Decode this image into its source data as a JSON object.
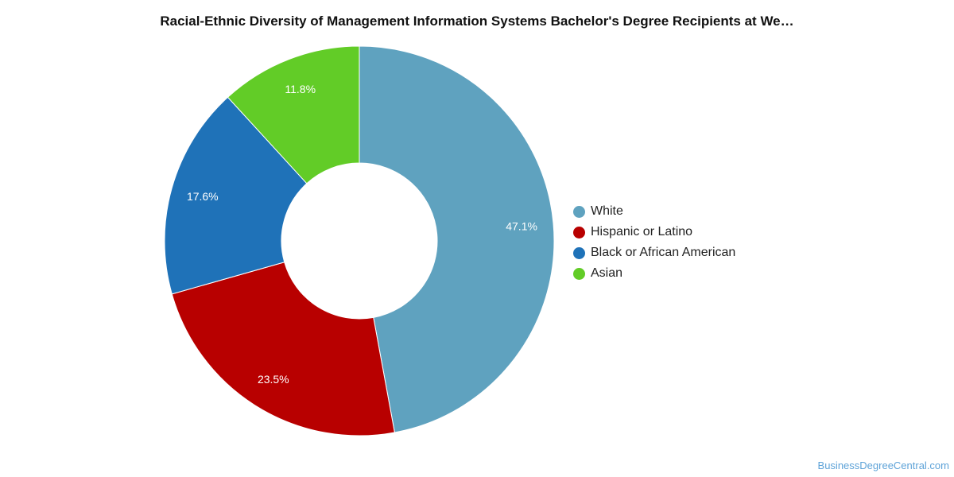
{
  "chart_data": {
    "type": "pie",
    "variant": "donut",
    "title": "Racial-Ethnic Diversity of Management Information Systems Bachelor's Degree Recipients at We…",
    "categories": [
      "White",
      "Hispanic or Latino",
      "Black or African American",
      "Asian"
    ],
    "values": [
      47.1,
      23.5,
      17.6,
      11.8
    ],
    "value_labels": [
      "47.1%",
      "23.5%",
      "17.6%",
      "11.8%"
    ],
    "colors": [
      "#5fa2bf",
      "#b80000",
      "#1f72b8",
      "#62cc27"
    ],
    "legend_position": "right",
    "start_angle": "top, clockwise"
  },
  "watermark": "BusinessDegreeCentral.com"
}
